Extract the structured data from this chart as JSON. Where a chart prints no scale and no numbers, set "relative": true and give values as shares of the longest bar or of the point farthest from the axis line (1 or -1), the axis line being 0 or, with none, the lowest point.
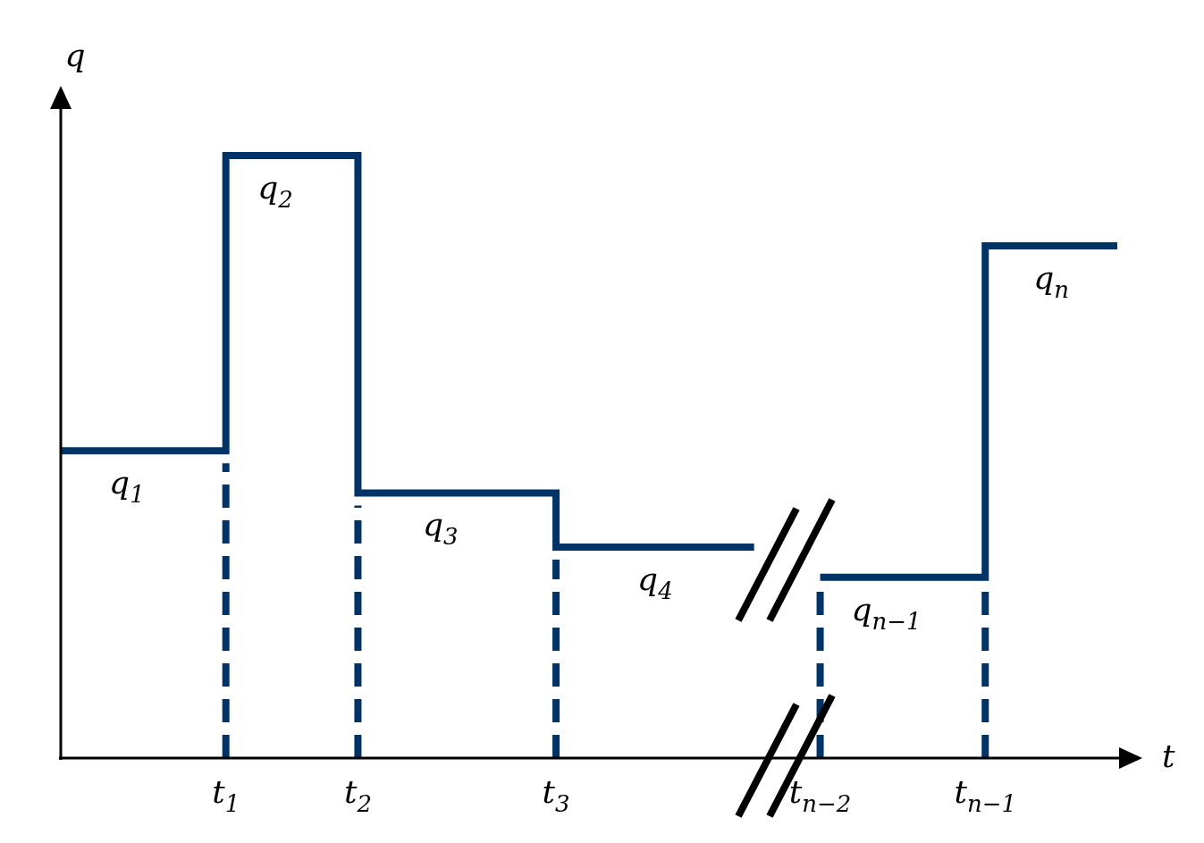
{
  "chart_data": {
    "type": "step",
    "relative": true,
    "xlabel": "t",
    "ylabel": "q",
    "categories": [
      null,
      null,
      null,
      null,
      null,
      "t$_{1}$",
      null,
      null,
      null,
      "t$_{2}$",
      null,
      null,
      null,
      null,
      null,
      "t$_{3}$",
      null,
      null,
      null,
      null,
      null,
      null,
      null,
      "t$_{n−2}$",
      null,
      null,
      null,
      null,
      "t$_{n−1}$",
      null,
      null,
      null,
      null
    ],
    "series": [
      {
        "color": "#003366",
        "values": [
          0.51,
          0.51,
          0.51,
          0.51,
          0.51,
          1,
          1,
          1,
          1,
          0.44,
          0.44,
          0.44,
          0.44,
          0.44,
          0.44,
          0.35,
          0.35,
          0.35,
          0.35,
          0.35,
          0.35,
          0.35,
          null,
          0.3,
          0.3,
          0.3,
          0.3,
          0.3,
          0.85,
          0.85,
          0.85,
          0.85,
          0.85
        ]
      }
    ],
    "marker": "none",
    "ref_lines": [
      {
        "axis": "x",
        "value": "t$_{1}$",
        "color": "#003366",
        "line_style": "dashed"
      },
      {
        "axis": "x",
        "value": "t$_{2}$",
        "color": "#003366",
        "line_style": "dashed"
      },
      {
        "axis": "x",
        "value": "t$_{3}$",
        "color": "#003366",
        "line_style": "dashed"
      },
      {
        "axis": "x",
        "value": "t$_{n−2}$",
        "color": "#003366",
        "line_style": "dashed"
      },
      {
        "axis": "x",
        "value": "t$_{n−1}$",
        "color": "#003366",
        "line_style": "dashed"
      }
    ],
    "line_style": "solid",
    "annotations": [
      {
        "text": "q$_{1}$",
        "y": 0.51
      },
      {
        "text": "q$_{2}$",
        "y": 1
      },
      {
        "text": "q$_{3}$",
        "y": 0.44
      },
      {
        "text": "q$_{4}$",
        "y": 0.35
      },
      {
        "text": "q$_{n−1}$",
        "y": 0.3
      },
      {
        "text": "q$_{n}$",
        "y": 0.85
      }
    ]
  }
}
